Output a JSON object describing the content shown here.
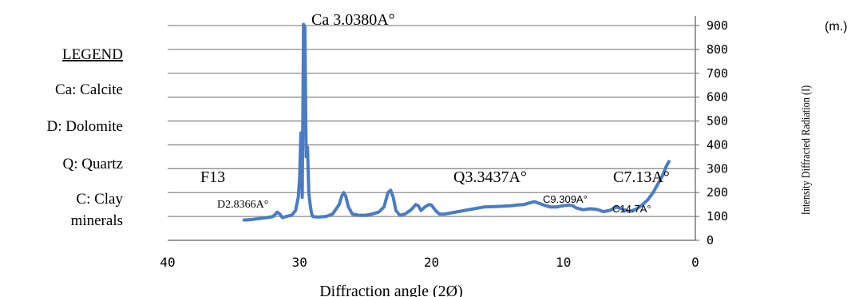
{
  "legend": {
    "title": "LEGEND",
    "entries": [
      {
        "lines": [
          "Ca: Calcite"
        ]
      },
      {
        "lines": [
          "D: Dolomite"
        ]
      },
      {
        "lines": [
          "Q: Quartz"
        ]
      },
      {
        "lines": [
          "C: Clay",
          "minerals"
        ]
      }
    ]
  },
  "corner_note": "(m.)",
  "chart_data": {
    "type": "line",
    "xlabel": "Diffraction angle (2Ø)",
    "ylabel": "Intensity Diffracted Radiation (I)",
    "xlim": [
      40,
      0
    ],
    "ylim": [
      0,
      900
    ],
    "x_ticks": [
      40,
      30,
      20,
      10,
      0
    ],
    "y_ticks": [
      0,
      100,
      200,
      300,
      400,
      500,
      600,
      700,
      800,
      900
    ],
    "y_axis_side": "right",
    "grid": "horizontal",
    "line_color": "#4a7cc4",
    "series": [
      {
        "x": [
          34.2,
          33.5,
          32.5,
          32.0,
          31.7,
          31.5,
          31.3,
          31.0,
          30.6,
          30.3,
          30.1,
          30.0,
          29.9,
          29.8,
          29.7,
          29.6,
          29.5,
          29.4,
          29.3,
          29.2,
          29.1,
          29.0,
          28.8,
          28.5,
          28.0,
          27.5,
          27.0,
          26.8,
          26.65,
          26.5,
          26.3,
          26.0,
          25.5,
          25.0,
          24.5,
          24.0,
          23.6,
          23.3,
          23.1,
          22.9,
          22.7,
          22.4,
          22.0,
          21.5,
          21.2,
          21.0,
          20.8,
          20.5,
          20.2,
          20.0,
          19.7,
          19.4,
          19.0,
          18.5,
          18.0,
          17.0,
          16.0,
          15.0,
          14.0,
          13.5,
          13.0,
          12.5,
          12.2,
          12.0,
          11.5,
          11.0,
          10.5,
          10.0,
          9.6,
          9.3,
          9.0,
          8.5,
          8.0,
          7.5,
          7.2,
          7.0,
          6.5,
          6.0,
          5.5,
          5.0,
          4.5,
          4.0,
          3.6,
          3.2,
          2.8,
          2.5,
          2.2,
          2.0
        ],
        "y": [
          85,
          88,
          95,
          100,
          118,
          110,
          95,
          100,
          105,
          125,
          180,
          260,
          450,
          180,
          905,
          895,
          350,
          390,
          200,
          150,
          115,
          100,
          98,
          98,
          100,
          110,
          150,
          185,
          200,
          185,
          140,
          110,
          105,
          105,
          110,
          118,
          140,
          200,
          210,
          180,
          125,
          105,
          110,
          130,
          150,
          145,
          125,
          140,
          150,
          148,
          125,
          110,
          110,
          115,
          120,
          130,
          140,
          142,
          145,
          148,
          150,
          158,
          162,
          158,
          148,
          140,
          140,
          145,
          148,
          145,
          135,
          128,
          132,
          130,
          125,
          120,
          125,
          140,
          130,
          120,
          130,
          150,
          170,
          200,
          240,
          270,
          310,
          330
        ]
      }
    ],
    "annotations": [
      {
        "text": "Ca 3.0380A°",
        "x": 29.7,
        "y": 905
      },
      {
        "text": "F13",
        "x": 37.0,
        "y": 308
      },
      {
        "text": "D2.8366A°",
        "x": 31.6,
        "y": 150
      },
      {
        "text": "Q3.3437A°",
        "x": 17.0,
        "y": 308
      },
      {
        "text": "C7.13A°",
        "x": 3.0,
        "y": 308
      },
      {
        "text": "C9.309A°",
        "x": 10.0,
        "y": 185
      },
      {
        "text": "C14.7A°",
        "x": 5.5,
        "y": 135
      }
    ]
  }
}
